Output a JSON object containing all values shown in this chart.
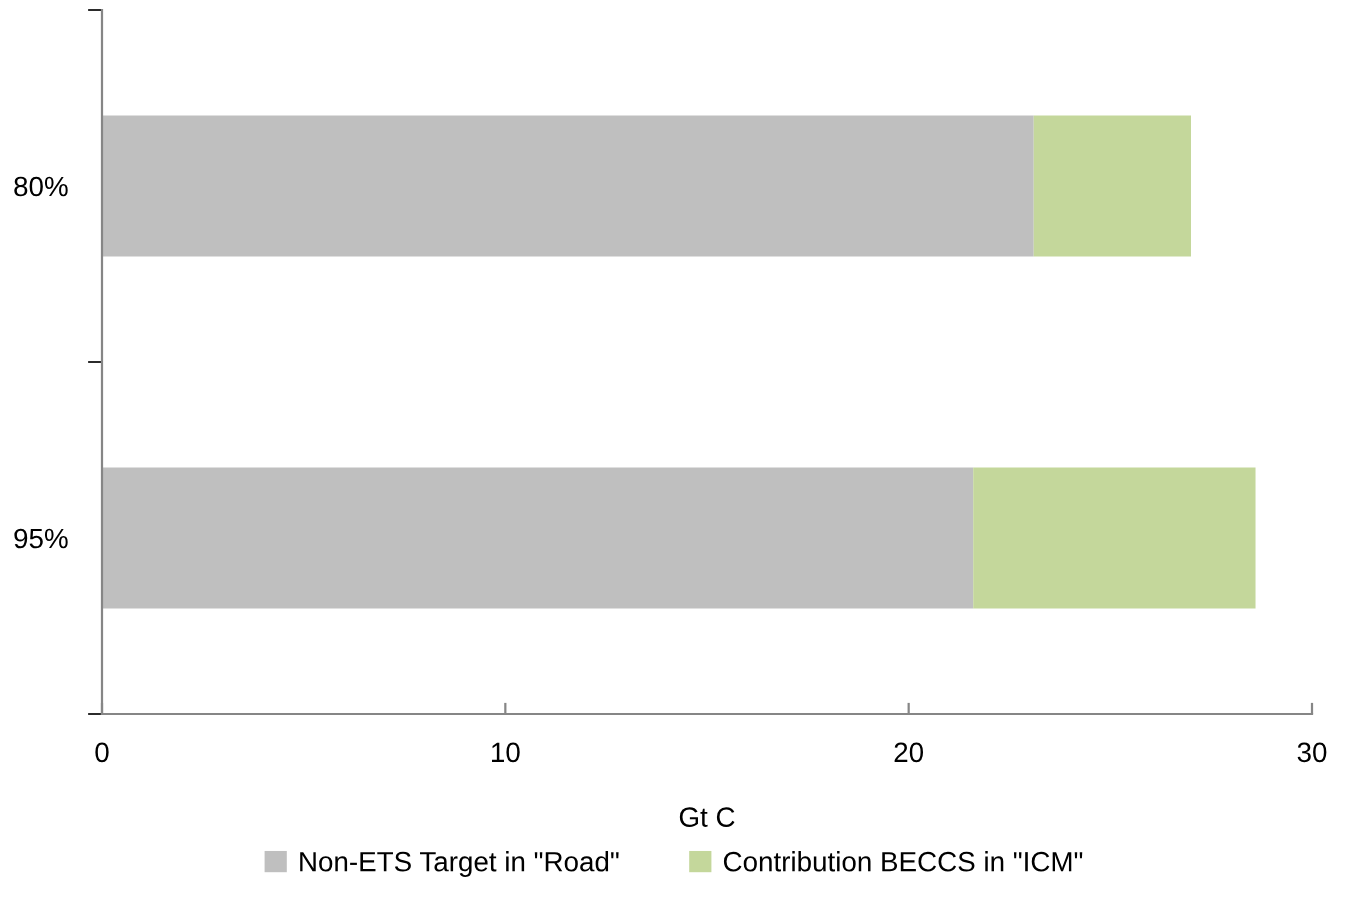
{
  "chart_data": {
    "type": "bar",
    "orientation": "horizontal",
    "stacked": true,
    "categories": [
      "80%",
      "95%"
    ],
    "series": [
      {
        "name": "Non-ETS Target in \"Road\"",
        "color": "#bfbfbf",
        "values": [
          23.1,
          21.6
        ]
      },
      {
        "name": "Contribution BECCS in \"ICM\"",
        "color": "#c4d79b",
        "values": [
          3.9,
          7.0
        ]
      }
    ],
    "xlabel": "Gt C",
    "xlim": [
      0,
      30
    ],
    "xticks": [
      0,
      10,
      20,
      30
    ],
    "grid": false,
    "legend": "bottom"
  }
}
